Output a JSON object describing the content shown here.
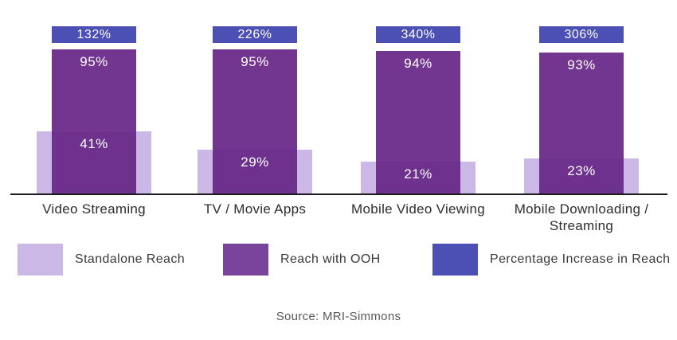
{
  "chart_data": {
    "type": "bar",
    "title": "",
    "categories": [
      "Video Streaming",
      "TV / Movie Apps",
      "Mobile Video Viewing",
      "Mobile Downloading / Streaming"
    ],
    "value_suffix": "%",
    "series": [
      {
        "name": "Standalone Reach",
        "values": [
          41,
          29,
          21,
          23
        ],
        "color": "#cbb8e7"
      },
      {
        "name": "Reach with OOH",
        "values": [
          95,
          95,
          94,
          93
        ],
        "color": "#7a449c",
        "bar_fill": "rgba(102,37,135,0.92)"
      },
      {
        "name": "Percentage Increase in Reach",
        "values": [
          132,
          226,
          340,
          306
        ],
        "color": "#4c4fb3"
      }
    ],
    "ylim": [
      0,
      100
    ],
    "grid": false,
    "legend_position": "bottom",
    "axis_line_color": "#1b1b1b"
  },
  "source": {
    "label": "Source: MRI-Simmons"
  }
}
